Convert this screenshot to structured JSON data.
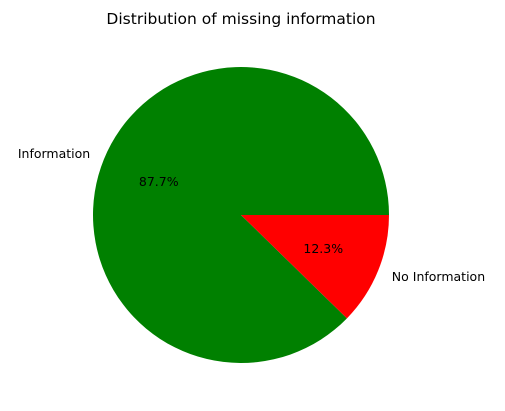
{
  "chart_data": {
    "type": "pie",
    "title": "Distribution of missing information",
    "slices": [
      {
        "label": "Information",
        "value": 87.7,
        "pct_label": "87.7%",
        "color": "#008000"
      },
      {
        "label": "No Information",
        "value": 12.3,
        "pct_label": "12.3%",
        "color": "#ff0000"
      }
    ],
    "start_angle_deg": 0,
    "direction": "counterclockwise"
  }
}
